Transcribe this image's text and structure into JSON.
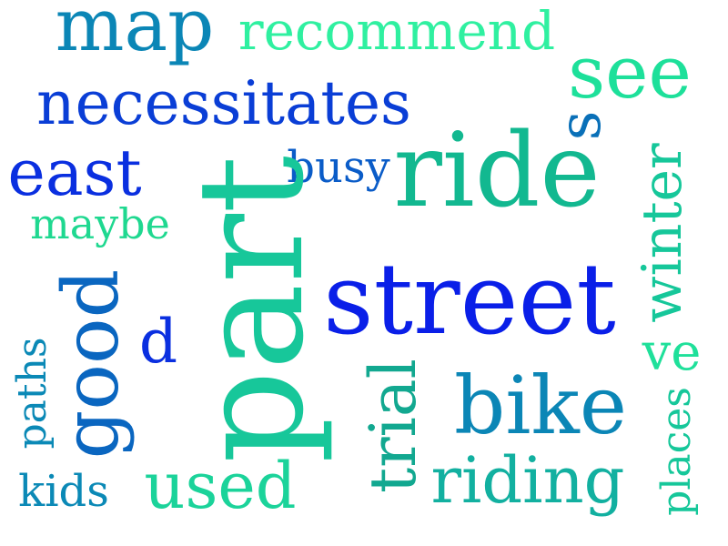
{
  "words": [
    {
      "id": "map",
      "text": "map",
      "color": "#0b86b6"
    },
    {
      "id": "recommend",
      "text": "recommend",
      "color": "#2ff0a0"
    },
    {
      "id": "see",
      "text": "see",
      "color": "#1de09a"
    },
    {
      "id": "necessitates",
      "text": "necessitates",
      "color": "#0a3ed6"
    },
    {
      "id": "east",
      "text": "east",
      "color": "#0a2fe0"
    },
    {
      "id": "busy",
      "text": "busy",
      "color": "#0a5cc8"
    },
    {
      "id": "ride",
      "text": "ride",
      "color": "#12b890"
    },
    {
      "id": "s",
      "text": "s",
      "color": "#0a70b8"
    },
    {
      "id": "winter",
      "text": "winter",
      "color": "#16c79a"
    },
    {
      "id": "maybe",
      "text": "maybe",
      "color": "#1fd890"
    },
    {
      "id": "part",
      "text": "part",
      "color": "#17c79a"
    },
    {
      "id": "good",
      "text": "good",
      "color": "#0a66c0"
    },
    {
      "id": "street",
      "text": "street",
      "color": "#0a1fe8"
    },
    {
      "id": "d",
      "text": "d",
      "color": "#0a2fe0"
    },
    {
      "id": "ve",
      "text": "ve",
      "color": "#1fe09a"
    },
    {
      "id": "paths",
      "text": "paths",
      "color": "#0b89b6"
    },
    {
      "id": "trial",
      "text": "trial",
      "color": "#12a890"
    },
    {
      "id": "bike",
      "text": "bike",
      "color": "#0b86b6"
    },
    {
      "id": "places",
      "text": "places",
      "color": "#16c79a"
    },
    {
      "id": "kids",
      "text": "kids",
      "color": "#0b89b6"
    },
    {
      "id": "used",
      "text": "used",
      "color": "#1bd39a"
    },
    {
      "id": "riding",
      "text": "riding",
      "color": "#12b0a0"
    }
  ]
}
